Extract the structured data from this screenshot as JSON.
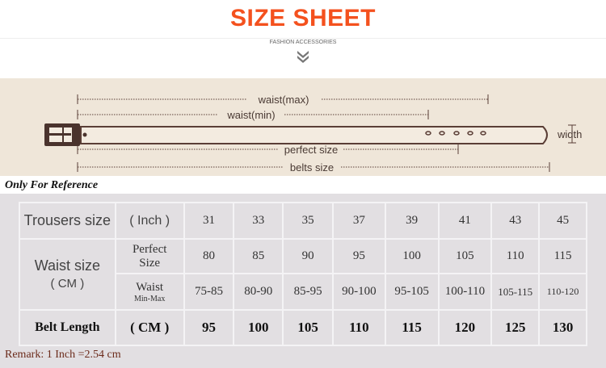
{
  "header": {
    "title": "SIZE SHEET",
    "subtitle": "FASHION ACCESSORIES",
    "icon": "double-chevron-down-icon"
  },
  "diagram": {
    "waist_max": "waist(max)",
    "waist_min": "waist(min)",
    "width": "width",
    "perfect_size": "perfect size",
    "belts_size": "belts size"
  },
  "note": "Only For Reference",
  "table": {
    "row1": {
      "label": "Trousers size",
      "unit": "( Inch )",
      "values": [
        "31",
        "33",
        "35",
        "37",
        "39",
        "41",
        "43",
        "45"
      ]
    },
    "waist_label": "Waist size",
    "waist_unit": "( CM )",
    "row2": {
      "label": "Perfect Size",
      "values": [
        "80",
        "85",
        "90",
        "95",
        "100",
        "105",
        "110",
        "115"
      ]
    },
    "row3": {
      "label": "Waist",
      "sublabel": "Min-Max",
      "values": [
        "75-85",
        "80-90",
        "85-95",
        "90-100",
        "95-105",
        "100-110",
        "105-115",
        "110-120"
      ]
    },
    "row4": {
      "label": "Belt Length",
      "unit": "( CM )",
      "values": [
        "95",
        "100",
        "105",
        "110",
        "115",
        "120",
        "125",
        "130"
      ]
    }
  },
  "remark": "Remark: 1 Inch =2.54 cm",
  "colors": {
    "title": "#f4511e",
    "belt_bg": "#efe6d9",
    "belt": "#5a3e36",
    "table_bg": "#e2dfe2",
    "remark": "#6b2a1a"
  }
}
